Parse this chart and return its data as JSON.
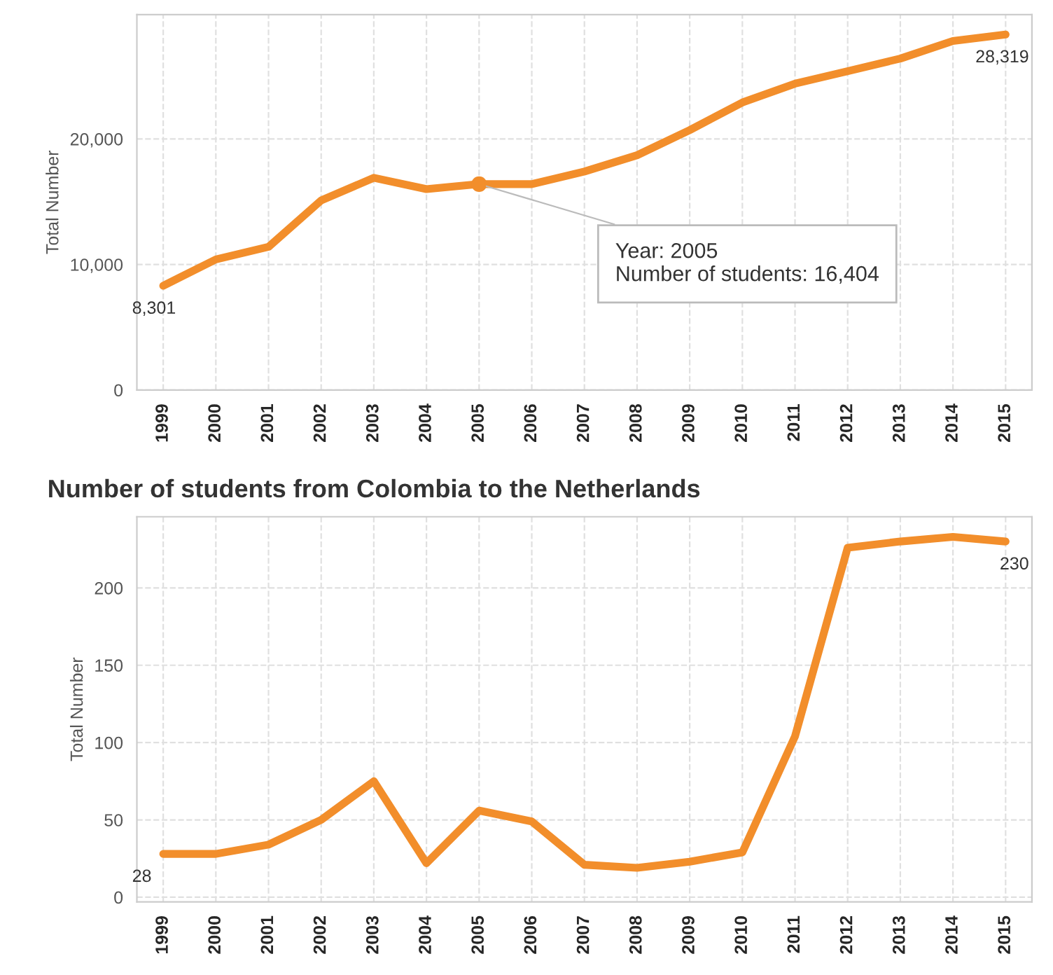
{
  "chart_data": [
    {
      "type": "line",
      "ylabel": "Total Number",
      "categories": [
        "1999",
        "2000",
        "2001",
        "2002",
        "2003",
        "2004",
        "2005",
        "2006",
        "2007",
        "2008",
        "2009",
        "2010",
        "2011",
        "2012",
        "2013",
        "2014",
        "2015"
      ],
      "series": [
        {
          "color": "#f28e2b",
          "values": [
            8301,
            10400,
            11400,
            15100,
            16900,
            16000,
            16404,
            16400,
            17400,
            18700,
            20700,
            22900,
            24400,
            25400,
            26400,
            27800,
            28319
          ],
          "value_labels": [
            "8,301",
            null,
            null,
            null,
            null,
            null,
            null,
            null,
            null,
            null,
            null,
            null,
            null,
            null,
            null,
            null,
            "28,319"
          ]
        }
      ],
      "ylim": [
        0,
        29900
      ],
      "yticks": [
        {
          "value": 0,
          "label": "0"
        },
        {
          "value": 10000,
          "label": "10,000"
        },
        {
          "value": 20000,
          "label": "20,000"
        }
      ],
      "grid": true,
      "legend": false,
      "annotations": [
        {
          "text": "Year: 2005\nNumber of students: 16,404",
          "x": "2005",
          "y": 16404
        }
      ]
    },
    {
      "type": "line",
      "title": "Number of students from Colombia to the Netherlands",
      "ylabel": "Total Number",
      "categories": [
        "1999",
        "2000",
        "2001",
        "2002",
        "2003",
        "2004",
        "2005",
        "2006",
        "2007",
        "2008",
        "2009",
        "2010",
        "2011",
        "2012",
        "2013",
        "2014",
        "2015"
      ],
      "series": [
        {
          "color": "#f28e2b",
          "values": [
            28,
            28,
            34,
            50,
            75,
            22,
            56,
            49,
            21,
            19,
            23,
            29,
            104,
            226,
            230,
            233,
            230
          ],
          "value_labels": [
            "28",
            null,
            null,
            null,
            null,
            null,
            null,
            null,
            null,
            null,
            null,
            null,
            null,
            null,
            null,
            null,
            "230"
          ]
        }
      ],
      "ylim": [
        -3,
        246
      ],
      "yticks": [
        0,
        50,
        100,
        150,
        200
      ],
      "grid": true,
      "legend": false
    }
  ]
}
